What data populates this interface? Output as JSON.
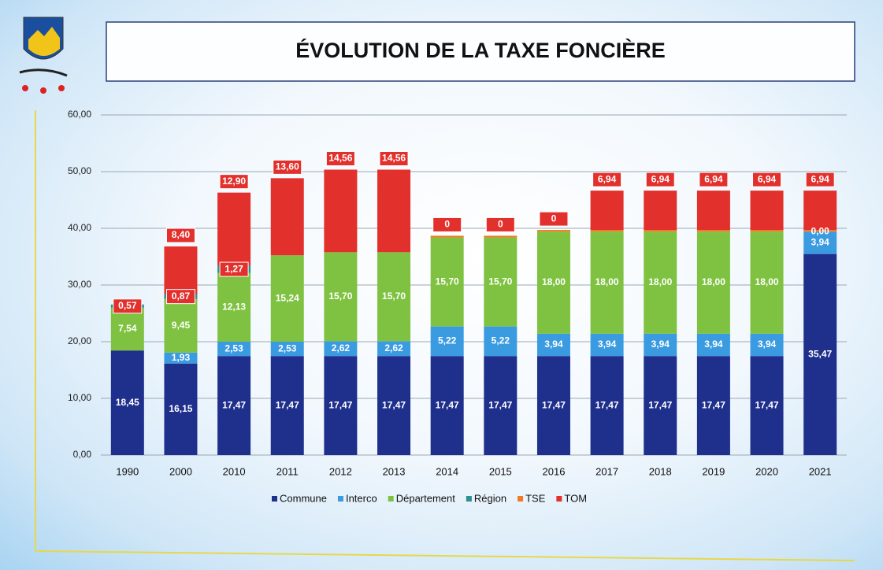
{
  "chart_data": {
    "type": "stacked_bar",
    "title": "ÉVOLUTION DE LA TAXE FONCIÈRE",
    "categories": [
      "1990",
      "2000",
      "2010",
      "2011",
      "2012",
      "2013",
      "2014",
      "2015",
      "2016",
      "2017",
      "2018",
      "2019",
      "2020",
      "2021"
    ],
    "ylim": [
      0,
      60
    ],
    "yticks": [
      {
        "value": 0,
        "label": "0,00"
      },
      {
        "value": 10,
        "label": "10,00"
      },
      {
        "value": 20,
        "label": "20,00"
      },
      {
        "value": 30,
        "label": "30,00"
      },
      {
        "value": 40,
        "label": "40,00"
      },
      {
        "value": 50,
        "label": "50,00"
      },
      {
        "value": 60,
        "label": "60,00"
      }
    ],
    "grid": true,
    "legend": "bottom",
    "series": [
      {
        "name": "Commune",
        "color": "#1f2f8c",
        "values": [
          18.45,
          16.15,
          17.47,
          17.47,
          17.47,
          17.47,
          17.47,
          17.47,
          17.47,
          17.47,
          17.47,
          17.47,
          17.47,
          35.47
        ],
        "value_labels": [
          "18,45",
          "16,15",
          "17,47",
          "17,47",
          "17,47",
          "17,47",
          "17,47",
          "17,47",
          "17,47",
          "17,47",
          "17,47",
          "17,47",
          "17,47",
          "35,47"
        ]
      },
      {
        "name": "Interco",
        "color": "#3b9be0",
        "values": [
          null,
          1.93,
          2.53,
          2.53,
          2.62,
          2.62,
          5.22,
          5.22,
          3.94,
          3.94,
          3.94,
          3.94,
          3.94,
          3.94
        ],
        "value_labels": [
          null,
          "1,93",
          "2,53",
          "2,53",
          "2,62",
          "2,62",
          "5,22",
          "5,22",
          "3,94",
          "3,94",
          "3,94",
          "3,94",
          "3,94",
          "3,94"
        ]
      },
      {
        "name": "Département",
        "color": "#7fc241",
        "values": [
          7.54,
          9.45,
          12.13,
          15.24,
          15.7,
          15.7,
          15.7,
          15.7,
          18,
          18,
          18,
          18,
          18,
          0
        ],
        "value_labels": [
          "7,54",
          "9,45",
          "12,13",
          "15,24",
          "15,70",
          "15,70",
          "15,70",
          "15,70",
          "18,00",
          "18,00",
          "18,00",
          "18,00",
          "18,00",
          "0,00"
        ]
      },
      {
        "name": "Région",
        "color": "#2a9090",
        "values": [
          0.57,
          0.87,
          1.27,
          null,
          null,
          null,
          null,
          null,
          null,
          null,
          null,
          null,
          null,
          null
        ],
        "value_labels": [
          "0,57",
          "0,87",
          "1,27",
          null,
          null,
          null,
          null,
          null,
          null,
          null,
          null,
          null,
          null,
          null
        ]
      },
      {
        "name": "TSE",
        "color": "#f07a22",
        "values": [
          null,
          null,
          null,
          null,
          null,
          null,
          0.3,
          0.3,
          0.3,
          0.3,
          0.3,
          0.3,
          0.3,
          0.3
        ]
      },
      {
        "name": "TOM",
        "color": "#e2302c",
        "values": [
          null,
          8.4,
          12.9,
          13.6,
          14.56,
          14.56,
          0,
          0,
          0,
          6.94,
          6.94,
          6.94,
          6.94,
          6.94
        ],
        "value_labels": [
          null,
          "8,40",
          "12,90",
          "13,60",
          "14,56",
          "14,56",
          "0",
          "0",
          "0",
          "6,94",
          "6,94",
          "6,94",
          "6,94",
          "6,94"
        ]
      }
    ]
  }
}
